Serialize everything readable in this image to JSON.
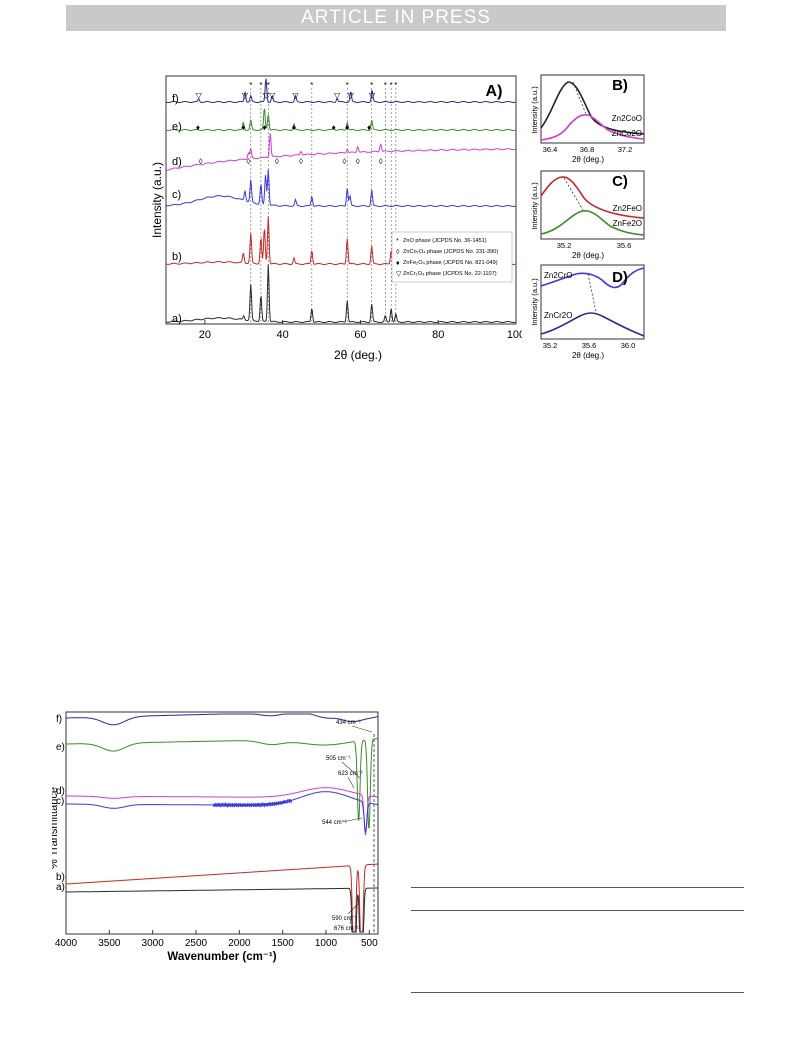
{
  "header": {
    "banner": "ARTICLE IN PRESS"
  },
  "colors": {
    "a": "#2b2b2b",
    "b": "#c82828",
    "c": "#3a3ad8",
    "d": "#d23cd2",
    "e": "#3f8a2c",
    "f": "#2a2a90"
  },
  "xrd": {
    "panel_label": "A)",
    "xlabel": "2θ (deg.)",
    "ylabel": "Intensity (a.u.)",
    "xticks": [
      "20",
      "40",
      "60",
      "80",
      "100"
    ],
    "xlim": [
      10,
      100
    ],
    "series_labels": [
      "a)",
      "b)",
      "c)",
      "d)",
      "e)",
      "f)"
    ],
    "legend": [
      "ZnO phase (JCPDS No. 36-1451)",
      "ZnCo₂O₄ phase (JCPDS No. 231-390)",
      "ZnFe₂O₄ phase (JCPDS No. 821-049)",
      "ZnCr₂O₄ phase (JCPDS No. 22-1107)"
    ],
    "legend_markers": [
      "*",
      "◊",
      "♦",
      "▽"
    ]
  },
  "inset_b": {
    "label": "B)",
    "ylabel": "Intensity (a.u.)",
    "xlabel": "2θ (deg.)",
    "xticks": [
      "36.4",
      "36.8",
      "37.2"
    ],
    "series": [
      "Zn2CoO",
      "ZnCo2O"
    ]
  },
  "inset_c": {
    "label": "C)",
    "ylabel": "Intensity (a.u.)",
    "xlabel": "2θ (deg.)",
    "xticks": [
      "35.2",
      "35.6"
    ],
    "series": [
      "Zn2FeO",
      "ZnFe2O"
    ]
  },
  "inset_d": {
    "label": "D)",
    "ylabel": "Intensity (a.u.)",
    "xlabel": "2θ (deg.)",
    "xticks": [
      "35.2",
      "35.6",
      "36.0"
    ],
    "series": [
      "Zn2CrO",
      "ZnCr2O"
    ]
  },
  "ftir": {
    "xlabel": "Wavenumber (cm⁻¹)",
    "ylabel": "% Transmittance",
    "xticks": [
      "4000",
      "3500",
      "3000",
      "2500",
      "2000",
      "1500",
      "1000",
      "500"
    ],
    "series_labels": [
      "f)",
      "e)",
      "d)",
      "c)",
      "b)",
      "a)"
    ],
    "annotations": [
      "434 cm⁻¹",
      "505 cm⁻¹",
      "623 cm⁻¹",
      "544 cm⁻¹",
      "590 cm⁻¹",
      "676 cm⁻¹"
    ]
  }
}
